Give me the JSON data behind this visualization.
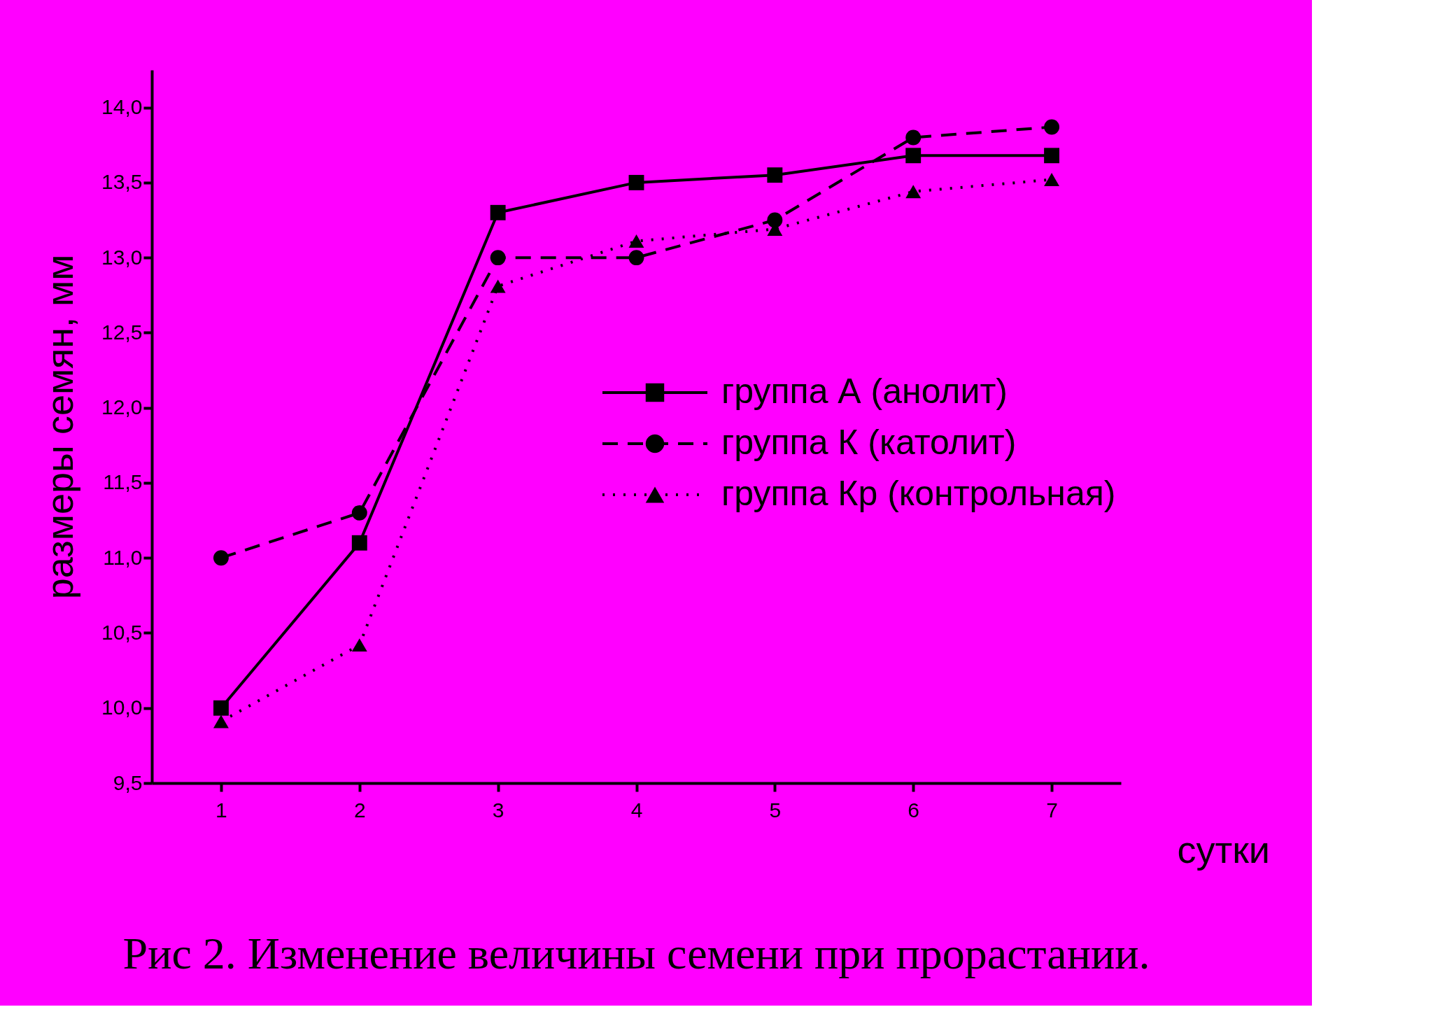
{
  "chart_data": {
    "type": "line",
    "annotations": [
      "Рис 2. Изменение величины семени при прорастании."
    ],
    "xlabel": "сутки",
    "ylabel": "размеры семян, мм",
    "x": [
      1,
      2,
      3,
      4,
      5,
      6,
      7
    ],
    "xlim": [
      0.5,
      7.5
    ],
    "xticks": [
      1,
      2,
      3,
      4,
      5,
      6,
      7
    ],
    "ylim": [
      9.5,
      14.25
    ],
    "yticks": [
      {
        "value": 9.5,
        "label": "9,5"
      },
      {
        "value": 10,
        "label": "10,0"
      },
      {
        "value": 10.5,
        "label": "10,5"
      },
      {
        "value": 11,
        "label": "11,0"
      },
      {
        "value": 11.5,
        "label": "11,5"
      },
      {
        "value": 12,
        "label": "12,0"
      },
      {
        "value": 12.5,
        "label": "12,5"
      },
      {
        "value": 13,
        "label": "13,0"
      },
      {
        "value": 13.5,
        "label": "13,5"
      },
      {
        "value": 14,
        "label": "14,0"
      }
    ],
    "grid": false,
    "legend": "right",
    "series": [
      {
        "name": "группа А  (анолит)",
        "color": "#000000",
        "line_style": "solid",
        "marker": "square",
        "values": [
          10.0,
          11.1,
          13.3,
          13.5,
          13.55,
          13.68,
          13.68
        ]
      },
      {
        "name": "группа К  (католит)",
        "color": "#000000",
        "line_style": "dashed",
        "marker": "circle",
        "values": [
          11.0,
          11.3,
          13.0,
          13.0,
          13.25,
          13.8,
          13.87
        ]
      },
      {
        "name": "группа Кр (контрольная)",
        "color": "#000000",
        "line_style": "dotted",
        "marker": "triangle",
        "values": [
          9.91,
          10.42,
          12.81,
          13.11,
          13.19,
          13.44,
          13.52
        ]
      }
    ]
  }
}
